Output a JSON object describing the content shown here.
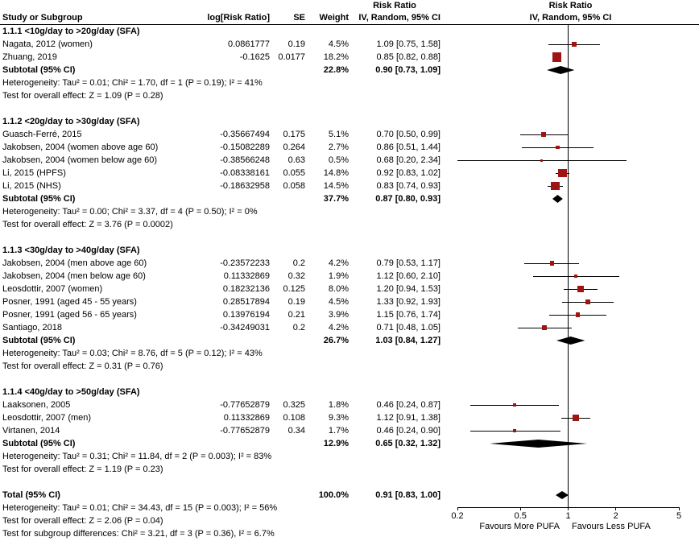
{
  "header": {
    "col_study": "Study or Subgroup",
    "col_log_rr": "log[Risk Ratio]",
    "col_se": "SE",
    "col_weight": "Weight",
    "rr_label": "Risk Ratio",
    "method_label": "IV, Random, 95% CI"
  },
  "colors": {
    "marker": "#a01313",
    "diamond": "#000000",
    "line": "#000000"
  },
  "chart_data": {
    "type": "forest",
    "x_scale": "log",
    "effect_measure": "Risk Ratio",
    "axis": {
      "min": 0.2,
      "max": 5,
      "ticks": [
        0.2,
        0.5,
        1,
        2,
        5
      ],
      "tick_labels": [
        "0.2",
        "0.5",
        "1",
        "2",
        "5"
      ],
      "favours_left": "Favours More PUFA",
      "favours_right": "Favours Less PUFA"
    },
    "subgroups": [
      {
        "label": "1.1.1 <10g/day to >20g/day (SFA)",
        "studies": [
          {
            "name": "Nagata, 2012 (women)",
            "log_rr": "0.0861777",
            "se": "0.19",
            "weight": "4.5%",
            "weight_pct": 4.5,
            "ci_text": "1.09 [0.75, 1.58]",
            "est": 1.09,
            "lo": 0.75,
            "hi": 1.58
          },
          {
            "name": "Zhuang, 2019",
            "log_rr": "-0.1625",
            "se": "0.0177",
            "weight": "18.2%",
            "weight_pct": 18.2,
            "ci_text": "0.85 [0.82, 0.88]",
            "est": 0.85,
            "lo": 0.82,
            "hi": 0.88
          }
        ],
        "subtotal": {
          "label": "Subtotal (95% CI)",
          "weight": "22.8%",
          "ci_text": "0.90 [0.73, 1.09]",
          "est": 0.9,
          "lo": 0.73,
          "hi": 1.09
        },
        "heterogeneity": "Heterogeneity: Tau² = 0.01; Chi² = 1.70, df = 1 (P = 0.19); I² = 41%",
        "overall_test": "Test for overall effect: Z = 1.09 (P = 0.28)"
      },
      {
        "label": "1.1.2 <20g/day to >30g/day (SFA)",
        "studies": [
          {
            "name": "Guasch-Ferré, 2015",
            "log_rr": "-0.35667494",
            "se": "0.175",
            "weight": "5.1%",
            "weight_pct": 5.1,
            "ci_text": "0.70 [0.50, 0.99]",
            "est": 0.7,
            "lo": 0.5,
            "hi": 0.99
          },
          {
            "name": "Jakobsen, 2004 (women above age 60)",
            "log_rr": "-0.15082289",
            "se": "0.264",
            "weight": "2.7%",
            "weight_pct": 2.7,
            "ci_text": "0.86 [0.51, 1.44]",
            "est": 0.86,
            "lo": 0.51,
            "hi": 1.44
          },
          {
            "name": "Jakobsen, 2004 (women below age 60)",
            "log_rr": "-0.38566248",
            "se": "0.63",
            "weight": "0.5%",
            "weight_pct": 0.5,
            "ci_text": "0.68 [0.20, 2.34]",
            "est": 0.68,
            "lo": 0.2,
            "hi": 2.34
          },
          {
            "name": "Li, 2015 (HPFS)",
            "log_rr": "-0.08338161",
            "se": "0.055",
            "weight": "14.8%",
            "weight_pct": 14.8,
            "ci_text": "0.92 [0.83, 1.02]",
            "est": 0.92,
            "lo": 0.83,
            "hi": 1.02
          },
          {
            "name": "Li, 2015 (NHS)",
            "log_rr": "-0.18632958",
            "se": "0.058",
            "weight": "14.5%",
            "weight_pct": 14.5,
            "ci_text": "0.83 [0.74, 0.93]",
            "est": 0.83,
            "lo": 0.74,
            "hi": 0.93
          }
        ],
        "subtotal": {
          "label": "Subtotal (95% CI)",
          "weight": "37.7%",
          "ci_text": "0.87 [0.80, 0.93]",
          "est": 0.87,
          "lo": 0.8,
          "hi": 0.93
        },
        "heterogeneity": "Heterogeneity: Tau² = 0.00; Chi² = 3.37, df = 4 (P = 0.50); I² = 0%",
        "overall_test": "Test for overall effect: Z = 3.76 (P = 0.0002)"
      },
      {
        "label": "1.1.3 <30g/day to >40g/day (SFA)",
        "studies": [
          {
            "name": "Jakobsen, 2004 (men above age 60)",
            "log_rr": "-0.23572233",
            "se": "0.2",
            "weight": "4.2%",
            "weight_pct": 4.2,
            "ci_text": "0.79 [0.53, 1.17]",
            "est": 0.79,
            "lo": 0.53,
            "hi": 1.17
          },
          {
            "name": "Jakobsen, 2004 (men below age 60)",
            "log_rr": "0.11332869",
            "se": "0.32",
            "weight": "1.9%",
            "weight_pct": 1.9,
            "ci_text": "1.12 [0.60, 2.10]",
            "est": 1.12,
            "lo": 0.6,
            "hi": 2.1
          },
          {
            "name": "Leosdottir, 2007 (women)",
            "log_rr": "0.18232136",
            "se": "0.125",
            "weight": "8.0%",
            "weight_pct": 8.0,
            "ci_text": "1.20 [0.94, 1.53]",
            "est": 1.2,
            "lo": 0.94,
            "hi": 1.53
          },
          {
            "name": "Posner, 1991 (aged 45 - 55 years)",
            "log_rr": "0.28517894",
            "se": "0.19",
            "weight": "4.5%",
            "weight_pct": 4.5,
            "ci_text": "1.33 [0.92, 1.93]",
            "est": 1.33,
            "lo": 0.92,
            "hi": 1.93
          },
          {
            "name": "Posner, 1991 (aged 56 - 65 years)",
            "log_rr": "0.13976194",
            "se": "0.21",
            "weight": "3.9%",
            "weight_pct": 3.9,
            "ci_text": "1.15 [0.76, 1.74]",
            "est": 1.15,
            "lo": 0.76,
            "hi": 1.74
          },
          {
            "name": "Santiago, 2018",
            "log_rr": "-0.34249031",
            "se": "0.2",
            "weight": "4.2%",
            "weight_pct": 4.2,
            "ci_text": "0.71 [0.48, 1.05]",
            "est": 0.71,
            "lo": 0.48,
            "hi": 1.05
          }
        ],
        "subtotal": {
          "label": "Subtotal (95% CI)",
          "weight": "26.7%",
          "ci_text": "1.03 [0.84, 1.27]",
          "est": 1.03,
          "lo": 0.84,
          "hi": 1.27
        },
        "heterogeneity": "Heterogeneity: Tau² = 0.03; Chi² = 8.76, df = 5 (P = 0.12); I² = 43%",
        "overall_test": "Test for overall effect: Z = 0.31 (P = 0.76)"
      },
      {
        "label": "1.1.4 <40g/day to >50g/day (SFA)",
        "studies": [
          {
            "name": "Laaksonen, 2005",
            "log_rr": "-0.77652879",
            "se": "0.325",
            "weight": "1.8%",
            "weight_pct": 1.8,
            "ci_text": "0.46 [0.24, 0.87]",
            "est": 0.46,
            "lo": 0.24,
            "hi": 0.87
          },
          {
            "name": "Leosdottir, 2007 (men)",
            "log_rr": "0.11332869",
            "se": "0.108",
            "weight": "9.3%",
            "weight_pct": 9.3,
            "ci_text": "1.12 [0.91, 1.38]",
            "est": 1.12,
            "lo": 0.91,
            "hi": 1.38
          },
          {
            "name": "Virtanen, 2014",
            "log_rr": "-0.77652879",
            "se": "0.34",
            "weight": "1.7%",
            "weight_pct": 1.7,
            "ci_text": "0.46 [0.24, 0.90]",
            "est": 0.46,
            "lo": 0.24,
            "hi": 0.9
          }
        ],
        "subtotal": {
          "label": "Subtotal (95% CI)",
          "weight": "12.9%",
          "ci_text": "0.65 [0.32, 1.32]",
          "est": 0.65,
          "lo": 0.32,
          "hi": 1.32
        },
        "heterogeneity": "Heterogeneity: Tau² = 0.31; Chi² = 11.84, df = 2 (P = 0.003); I² = 83%",
        "overall_test": "Test for overall effect: Z = 1.19 (P = 0.23)"
      }
    ],
    "total": {
      "label": "Total (95% CI)",
      "weight": "100.0%",
      "ci_text": "0.91 [0.83, 1.00]",
      "est": 0.91,
      "lo": 0.83,
      "hi": 1.0
    },
    "total_heterogeneity": "Heterogeneity: Tau² = 0.01; Chi² = 34.43, df = 15 (P = 0.003); I² = 56%",
    "total_overall_test": "Test for overall effect: Z = 2.06 (P = 0.04)",
    "subgroup_diff_test": "Test for subgroup differences: Chi² = 3.21, df = 3 (P = 0.36), I² = 6.7%"
  }
}
